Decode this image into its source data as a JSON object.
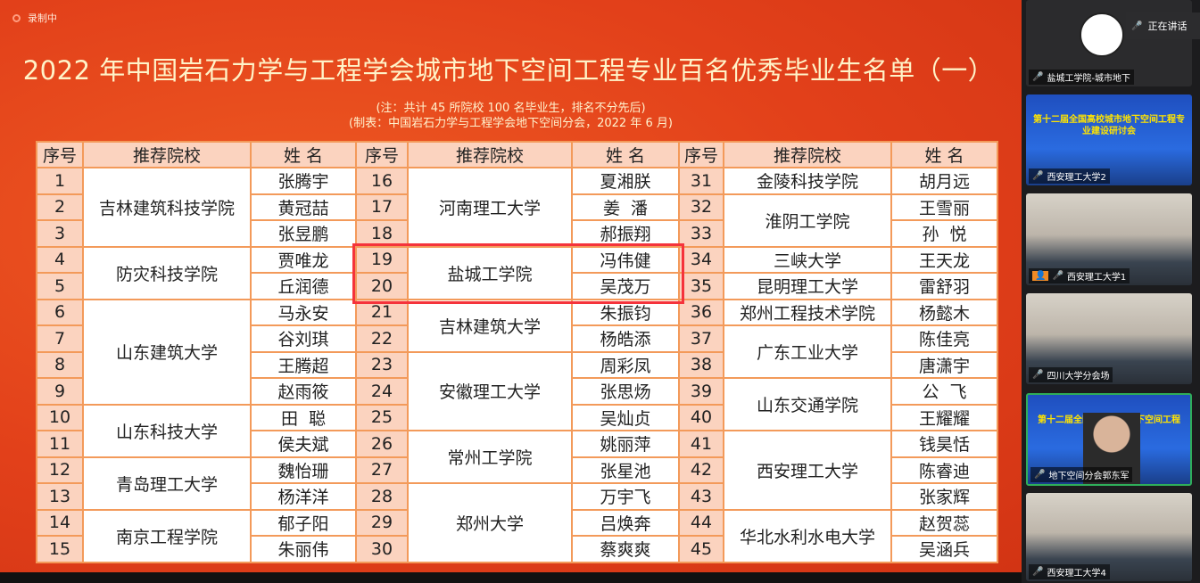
{
  "recording": "录制中",
  "title": "2022 年中国岩石力学与工程学会城市地下空间工程专业百名优秀毕业生名单（一）",
  "note1": "(注：共计 45 所院校 100 名毕业生，排名不分先后)",
  "note2": "(制表：中国岩石力学与工程学会地下空间分会，2022 年 6 月)",
  "headers": {
    "no": "序号",
    "school": "推荐院校",
    "name": "姓  名"
  },
  "columns": [
    [
      {
        "school": "吉林建筑科技学院",
        "rows": [
          [
            1,
            "张腾宇"
          ],
          [
            2,
            "黄冠喆"
          ],
          [
            3,
            "张昱鹏"
          ]
        ]
      },
      {
        "school": "防灾科技学院",
        "rows": [
          [
            4,
            "贾唯龙"
          ],
          [
            5,
            "丘润德"
          ]
        ]
      },
      {
        "school": "山东建筑大学",
        "rows": [
          [
            6,
            "马永安"
          ],
          [
            7,
            "谷刘琪"
          ],
          [
            8,
            "王腾超"
          ],
          [
            9,
            "赵雨筱"
          ]
        ]
      },
      {
        "school": "山东科技大学",
        "rows": [
          [
            10,
            "田  聪"
          ],
          [
            11,
            "侯夫斌"
          ]
        ]
      },
      {
        "school": "青岛理工大学",
        "rows": [
          [
            12,
            "魏怡珊"
          ],
          [
            13,
            "杨洋洋"
          ]
        ]
      },
      {
        "school": "南京工程学院",
        "rows": [
          [
            14,
            "郁子阳"
          ],
          [
            15,
            "朱丽伟"
          ]
        ]
      }
    ],
    [
      {
        "school": "河南理工大学",
        "rows": [
          [
            16,
            "夏湘朕"
          ],
          [
            17,
            "姜  潘"
          ],
          [
            18,
            "郝振翔"
          ]
        ]
      },
      {
        "school": "盐城工学院",
        "rows": [
          [
            19,
            "冯伟健"
          ],
          [
            20,
            "吴茂万"
          ]
        ]
      },
      {
        "school": "吉林建筑大学",
        "rows": [
          [
            21,
            "朱振钧"
          ],
          [
            22,
            "杨皓添"
          ]
        ]
      },
      {
        "school": "安徽理工大学",
        "rows": [
          [
            23,
            "周彩凤"
          ],
          [
            24,
            "张思炀"
          ],
          [
            25,
            "吴灿贞"
          ]
        ]
      },
      {
        "school": "常州工学院",
        "rows": [
          [
            26,
            "姚丽萍"
          ],
          [
            27,
            "张星池"
          ]
        ]
      },
      {
        "school": "郑州大学",
        "rows": [
          [
            28,
            "万宇飞"
          ],
          [
            29,
            "吕焕奔"
          ],
          [
            30,
            "蔡爽爽"
          ]
        ]
      }
    ],
    [
      {
        "school": "金陵科技学院",
        "rows": [
          [
            31,
            "胡月远"
          ]
        ]
      },
      {
        "school": "淮阴工学院",
        "rows": [
          [
            32,
            "王雪丽"
          ],
          [
            33,
            "孙  悦"
          ]
        ]
      },
      {
        "school": "三峡大学",
        "rows": [
          [
            34,
            "王天龙"
          ]
        ]
      },
      {
        "school": "昆明理工大学",
        "rows": [
          [
            35,
            "雷舒羽"
          ]
        ]
      },
      {
        "school": "郑州工程技术学院",
        "rows": [
          [
            36,
            "杨懿木"
          ]
        ]
      },
      {
        "school": "广东工业大学",
        "rows": [
          [
            37,
            "陈佳亮"
          ],
          [
            38,
            "唐潇宇"
          ]
        ]
      },
      {
        "school": "山东交通学院",
        "rows": [
          [
            39,
            "公  飞"
          ],
          [
            40,
            "王耀耀"
          ]
        ]
      },
      {
        "school": "西安理工大学",
        "rows": [
          [
            41,
            "钱昊恬"
          ],
          [
            42,
            "陈睿迪"
          ],
          [
            43,
            "张家辉"
          ]
        ]
      },
      {
        "school": "华北水利水电大学",
        "rows": [
          [
            44,
            "赵贺蕊"
          ],
          [
            45,
            "吴涵兵"
          ]
        ]
      }
    ]
  ],
  "sidebar": {
    "speaking": "正在讲话",
    "tiles": [
      {
        "label": "盐城工学院-城市地下",
        "mic": "muted"
      },
      {
        "label": "西安理工大学2",
        "mic": "on",
        "banner": "第十二届全国高校城市地下空间工程专业建设研讨会"
      },
      {
        "label": "西安理工大学1",
        "mic": "muted"
      },
      {
        "label": "四川大学分会场",
        "mic": "muted"
      },
      {
        "label": "地下空间分会郭东军",
        "mic": "active",
        "banner": "第十二届全国高校城市地下空间工程专业建设"
      },
      {
        "label": "西安理工大学4",
        "mic": "muted"
      }
    ]
  }
}
